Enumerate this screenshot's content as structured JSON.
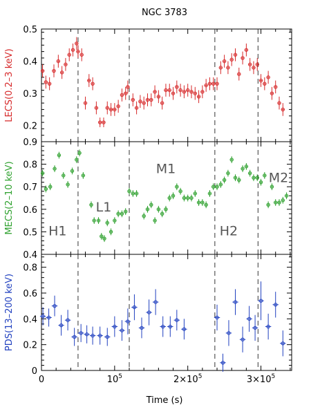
{
  "chart_data": {
    "type": "scatter",
    "title": "NGC 3783",
    "xlabel": "Time (s)",
    "xlim": [
      0,
      342000
    ],
    "x_ticks": [
      {
        "value": 0,
        "label": "0"
      },
      {
        "value": 100000,
        "label": "10^5"
      },
      {
        "value": 200000,
        "label": "2×10^5"
      },
      {
        "value": 300000,
        "label": "3×10^5"
      }
    ],
    "state_boundaries": [
      50000,
      120000,
      237000,
      296000
    ],
    "annotations": [
      {
        "panel": 1,
        "text": "H1",
        "x": 22000,
        "y": 0.485
      },
      {
        "panel": 1,
        "text": "L1",
        "x": 85000,
        "y": 0.59
      },
      {
        "panel": 1,
        "text": "M1",
        "x": 170000,
        "y": 0.76
      },
      {
        "panel": 1,
        "text": "H2",
        "x": 256000,
        "y": 0.485
      },
      {
        "panel": 1,
        "text": "M2",
        "x": 324000,
        "y": 0.72
      }
    ],
    "panels": [
      {
        "ylabel": "LECS(0.2–3 keV)",
        "color": "#d62728",
        "ylim": [
          0.15,
          0.5
        ],
        "yticks": [
          "0.2",
          "0.3",
          "0.4",
          "0.5"
        ],
        "ytick_values": [
          0.2,
          0.3,
          0.4,
          0.5
        ],
        "xerr": 1500,
        "x": [
          1500,
          6000,
          11000,
          17000,
          23000,
          28000,
          33000,
          38000,
          43000,
          48000,
          50000,
          55000,
          60000,
          65000,
          70000,
          75000,
          80000,
          85000,
          90000,
          95000,
          100000,
          105000,
          110000,
          115000,
          118000,
          125000,
          130000,
          135000,
          140000,
          145000,
          150000,
          155000,
          160000,
          165000,
          170000,
          175000,
          180000,
          185000,
          190000,
          195000,
          200000,
          205000,
          210000,
          215000,
          220000,
          225000,
          230000,
          235000,
          240000,
          245000,
          250000,
          255000,
          260000,
          265000,
          270000,
          275000,
          280000,
          285000,
          290000,
          295000,
          300000,
          305000,
          310000,
          315000,
          320000,
          325000,
          330000
        ],
        "y": [
          0.37,
          0.335,
          0.33,
          0.37,
          0.4,
          0.365,
          0.39,
          0.42,
          0.435,
          0.455,
          0.43,
          0.42,
          0.27,
          0.34,
          0.33,
          0.255,
          0.21,
          0.21,
          0.255,
          0.25,
          0.25,
          0.26,
          0.295,
          0.3,
          0.32,
          0.28,
          0.255,
          0.275,
          0.27,
          0.28,
          0.28,
          0.305,
          0.29,
          0.27,
          0.31,
          0.31,
          0.3,
          0.32,
          0.31,
          0.305,
          0.31,
          0.305,
          0.3,
          0.29,
          0.305,
          0.325,
          0.33,
          0.33,
          0.33,
          0.38,
          0.4,
          0.38,
          0.405,
          0.42,
          0.36,
          0.41,
          0.435,
          0.39,
          0.38,
          0.39,
          0.34,
          0.33,
          0.35,
          0.3,
          0.32,
          0.27,
          0.25
        ],
        "yerr": [
          0.02,
          0.02,
          0.02,
          0.02,
          0.02,
          0.02,
          0.02,
          0.02,
          0.02,
          0.02,
          0.02,
          0.02,
          0.02,
          0.02,
          0.02,
          0.02,
          0.015,
          0.015,
          0.02,
          0.02,
          0.02,
          0.02,
          0.02,
          0.02,
          0.02,
          0.02,
          0.02,
          0.02,
          0.02,
          0.02,
          0.02,
          0.02,
          0.02,
          0.02,
          0.02,
          0.02,
          0.02,
          0.02,
          0.02,
          0.02,
          0.02,
          0.02,
          0.02,
          0.02,
          0.02,
          0.02,
          0.02,
          0.02,
          0.02,
          0.02,
          0.02,
          0.02,
          0.02,
          0.02,
          0.02,
          0.02,
          0.02,
          0.02,
          0.02,
          0.02,
          0.02,
          0.02,
          0.02,
          0.02,
          0.02,
          0.02,
          0.02
        ]
      },
      {
        "ylabel": "MECS(2–10 keV)",
        "color": "#2ca02c",
        "ylim": [
          0.4,
          0.9
        ],
        "yticks": [
          "0.4",
          "0.5",
          "0.6",
          "0.7",
          "0.8",
          "0.9"
        ],
        "ytick_values": [
          0.4,
          0.5,
          0.6,
          0.7,
          0.8,
          0.9
        ],
        "xerr": 1500,
        "x": [
          1500,
          6000,
          12000,
          18000,
          24000,
          30000,
          36000,
          42000,
          48000,
          52000,
          57000,
          68000,
          72000,
          78000,
          82000,
          86000,
          90000,
          95000,
          100000,
          105000,
          110000,
          115000,
          120000,
          125000,
          130000,
          140000,
          145000,
          150000,
          155000,
          160000,
          165000,
          170000,
          175000,
          180000,
          185000,
          190000,
          195000,
          200000,
          205000,
          210000,
          215000,
          220000,
          225000,
          230000,
          235000,
          240000,
          245000,
          250000,
          255000,
          260000,
          265000,
          270000,
          275000,
          280000,
          285000,
          290000,
          295000,
          300000,
          305000,
          310000,
          315000,
          320000,
          325000,
          330000,
          335000
        ],
        "y": [
          0.76,
          0.69,
          0.7,
          0.78,
          0.84,
          0.75,
          0.71,
          0.77,
          0.82,
          0.85,
          0.75,
          0.62,
          0.55,
          0.55,
          0.48,
          0.47,
          0.54,
          0.5,
          0.55,
          0.58,
          0.58,
          0.59,
          0.68,
          0.67,
          0.67,
          0.57,
          0.6,
          0.62,
          0.55,
          0.6,
          0.58,
          0.6,
          0.65,
          0.66,
          0.7,
          0.68,
          0.65,
          0.65,
          0.65,
          0.67,
          0.63,
          0.63,
          0.62,
          0.67,
          0.7,
          0.7,
          0.71,
          0.73,
          0.76,
          0.82,
          0.74,
          0.73,
          0.78,
          0.79,
          0.76,
          0.74,
          0.74,
          0.72,
          0.75,
          0.62,
          0.7,
          0.63,
          0.63,
          0.64,
          0.66
        ],
        "yerr": [
          0.015,
          0.015,
          0.015,
          0.015,
          0.015,
          0.015,
          0.015,
          0.015,
          0.015,
          0.015,
          0.015,
          0.015,
          0.015,
          0.015,
          0.015,
          0.015,
          0.015,
          0.015,
          0.015,
          0.015,
          0.015,
          0.015,
          0.015,
          0.015,
          0.015,
          0.015,
          0.015,
          0.015,
          0.015,
          0.015,
          0.015,
          0.015,
          0.015,
          0.015,
          0.015,
          0.015,
          0.015,
          0.015,
          0.015,
          0.015,
          0.015,
          0.015,
          0.015,
          0.015,
          0.015,
          0.015,
          0.015,
          0.015,
          0.015,
          0.015,
          0.015,
          0.015,
          0.015,
          0.015,
          0.015,
          0.015,
          0.015,
          0.015,
          0.015,
          0.015,
          0.015,
          0.015,
          0.015,
          0.015,
          0.015
        ]
      },
      {
        "ylabel": "PDS(13–200 keV)",
        "color": "#1f3fbf",
        "ylim": [
          0,
          0.9
        ],
        "yticks": [
          "0",
          "0.2",
          "0.4",
          "0.6",
          "0.8"
        ],
        "ytick_values": [
          0,
          0.2,
          0.4,
          0.6,
          0.8
        ],
        "xerr": 4000,
        "x": [
          2000,
          10000,
          18000,
          27000,
          36000,
          45000,
          54000,
          62000,
          70000,
          80000,
          90000,
          100000,
          110000,
          118000,
          127000,
          137000,
          147000,
          156000,
          166000,
          176000,
          185000,
          195000,
          240000,
          248000,
          256000,
          265000,
          275000,
          284000,
          292000,
          300000,
          310000,
          320000,
          330000
        ],
        "y": [
          0.42,
          0.41,
          0.5,
          0.35,
          0.39,
          0.26,
          0.29,
          0.28,
          0.27,
          0.27,
          0.26,
          0.34,
          0.31,
          0.38,
          0.49,
          0.33,
          0.45,
          0.53,
          0.34,
          0.34,
          0.39,
          0.32,
          0.41,
          0.06,
          0.29,
          0.53,
          0.24,
          0.4,
          0.33,
          0.54,
          0.34,
          0.51,
          0.21
        ],
        "yerr": [
          0.07,
          0.07,
          0.08,
          0.08,
          0.08,
          0.07,
          0.07,
          0.07,
          0.07,
          0.07,
          0.07,
          0.08,
          0.08,
          0.1,
          0.1,
          0.08,
          0.1,
          0.1,
          0.08,
          0.08,
          0.08,
          0.08,
          0.1,
          0.07,
          0.1,
          0.1,
          0.1,
          0.1,
          0.1,
          0.15,
          0.1,
          0.1,
          0.1
        ]
      }
    ]
  }
}
